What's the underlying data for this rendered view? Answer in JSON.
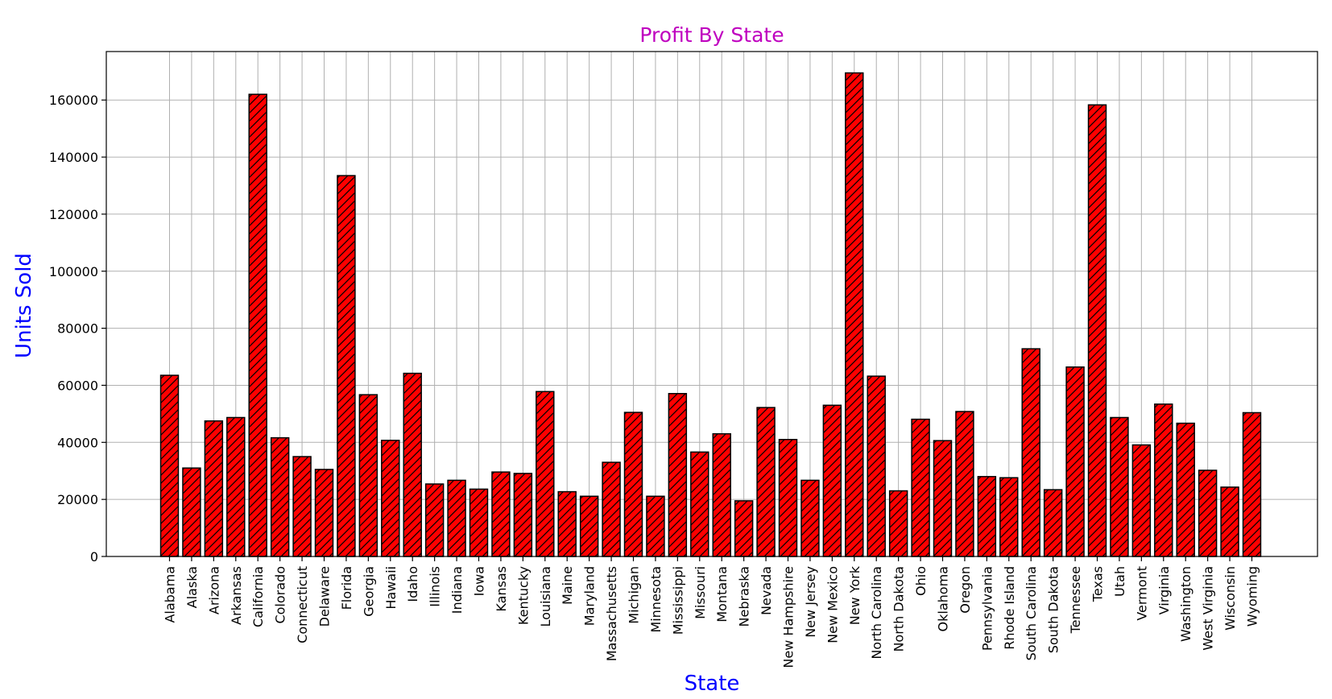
{
  "chart_data": {
    "type": "bar",
    "title": "Profit By State",
    "xlabel": "State",
    "ylabel": "Units Sold",
    "ylim": [
      0,
      177000
    ],
    "yticks": [
      0,
      20000,
      40000,
      60000,
      80000,
      100000,
      120000,
      140000,
      160000
    ],
    "ytick_labels": [
      "0",
      "20000",
      "40000",
      "60000",
      "80000",
      "100000",
      "120000",
      "140000",
      "160000"
    ],
    "grid": true,
    "bar_color": "#ff0000",
    "bar_edge_color": "#000000",
    "bar_hatch": "diagonal",
    "title_color": "#bf00bf",
    "label_color": "#0000ff",
    "categories": [
      "Alabama",
      "Alaska",
      "Arizona",
      "Arkansas",
      "California",
      "Colorado",
      "Connecticut",
      "Delaware",
      "Florida",
      "Georgia",
      "Hawaii",
      "Idaho",
      "Illinois",
      "Indiana",
      "Iowa",
      "Kansas",
      "Kentucky",
      "Louisiana",
      "Maine",
      "Maryland",
      "Massachusetts",
      "Michigan",
      "Minnesota",
      "Mississippi",
      "Missouri",
      "Montana",
      "Nebraska",
      "Nevada",
      "New Hampshire",
      "New Jersey",
      "New Mexico",
      "New York",
      "North Carolina",
      "North Dakota",
      "Ohio",
      "Oklahoma",
      "Oregon",
      "Pennsylvania",
      "Rhode Island",
      "South Carolina",
      "South Dakota",
      "Tennessee",
      "Texas",
      "Utah",
      "Vermont",
      "Virginia",
      "Washington",
      "West Virginia",
      "Wisconsin",
      "Wyoming"
    ],
    "values": [
      63500,
      31000,
      47500,
      48700,
      162000,
      41600,
      35000,
      30500,
      133500,
      56700,
      40700,
      64200,
      25400,
      26700,
      23600,
      29600,
      29100,
      57800,
      22700,
      21100,
      33000,
      50500,
      21100,
      57100,
      36600,
      43000,
      19500,
      52200,
      41000,
      26700,
      53000,
      169500,
      63200,
      23000,
      48100,
      40600,
      50800,
      28000,
      27600,
      72800,
      23400,
      66400,
      158300,
      48700,
      39100,
      53400,
      46700,
      30200,
      24300,
      50400
    ]
  }
}
